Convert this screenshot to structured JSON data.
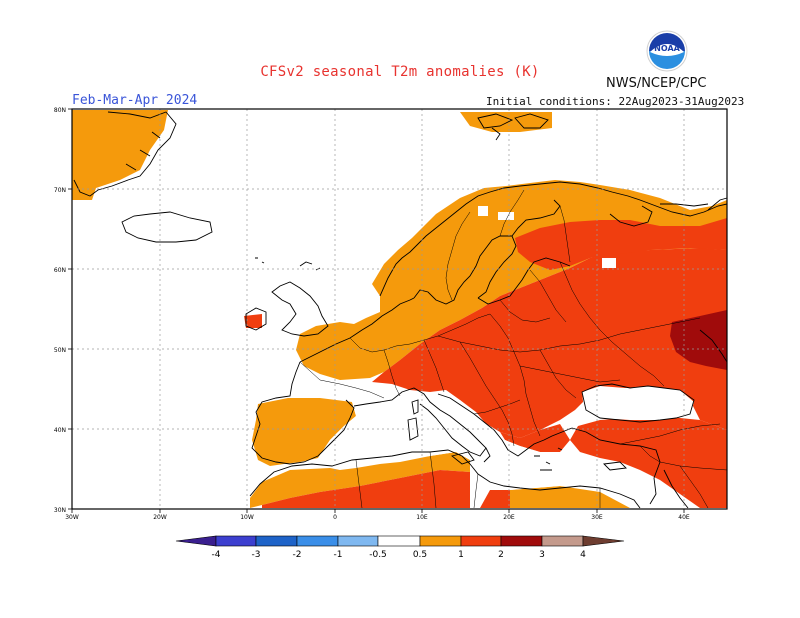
{
  "title": "CFSv2 seasonal T2m anomalies (K)",
  "agency": "NWS/NCEP/CPC",
  "season": "Feb-Mar-Apr 2024",
  "initial_conditions": "Initial conditions: 22Aug2023-31Aug2023",
  "logo_text": "NOAA",
  "lat_labels": [
    "80N",
    "70N",
    "60N",
    "50N",
    "40N",
    "30N"
  ],
  "lon_labels": [
    "30W",
    "20W",
    "10W",
    "0",
    "10E",
    "20E",
    "30E",
    "40E"
  ],
  "colorbar": {
    "labels": [
      "-4",
      "-3",
      "-2",
      "-1",
      "-0.5",
      "0.5",
      "1",
      "2",
      "3",
      "4"
    ],
    "colors": {
      "lt_-4": "#3a1f8f",
      "-4_-3": "#3c3fcf",
      "-3_-2": "#1e63c8",
      "-2_-1": "#3a8ee8",
      "-1_-0.5": "#7fb8f0",
      "-0.5_0.5": "#ffffff",
      "0.5_1": "#f59a0c",
      "1_2": "#f03e0f",
      "2_3": "#a00b0b",
      "3_4": "#c49a8c",
      "gt_4": "#6e3d30"
    }
  }
}
